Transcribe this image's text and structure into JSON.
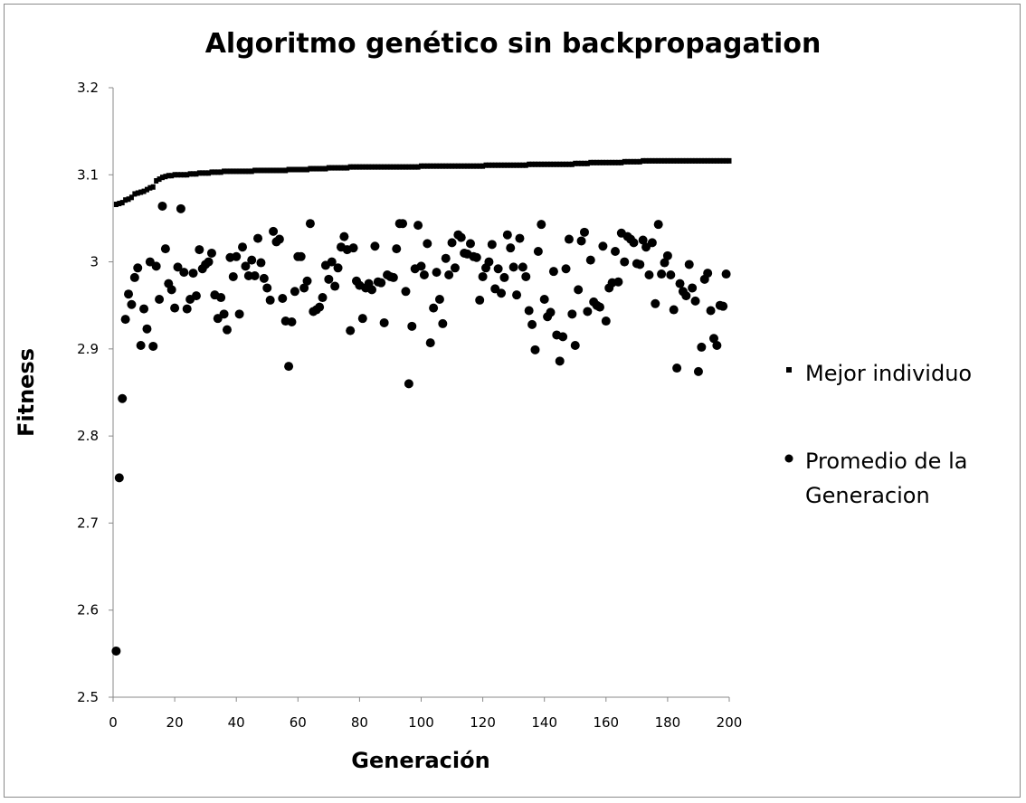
{
  "chart_data": {
    "type": "scatter",
    "title": "Algoritmo genético sin backpropagation",
    "xlabel": "Generación",
    "ylabel": "Fitness",
    "xlim": [
      0,
      200
    ],
    "ylim": [
      2.5,
      3.2
    ],
    "x_ticks": [
      "0",
      "20",
      "40",
      "60",
      "80",
      "100",
      "120",
      "140",
      "160",
      "180",
      "200"
    ],
    "y_ticks": [
      "2.5",
      "2.6",
      "2.7",
      "2.8",
      "2.9",
      "3",
      "3.1",
      "3.2"
    ],
    "grid": false,
    "legend_position": "right",
    "legend": [
      "Mejor individuo",
      "Promedio de la Generacion"
    ],
    "series": [
      {
        "name": "Mejor individuo",
        "marker": "square",
        "color": "#000000",
        "segments": [
          {
            "from": 1,
            "to": 1,
            "y": 3.066
          },
          {
            "from": 2,
            "to": 2,
            "y": 3.067
          },
          {
            "from": 3,
            "to": 3,
            "y": 3.068
          },
          {
            "from": 4,
            "to": 4,
            "y": 3.071
          },
          {
            "from": 5,
            "to": 5,
            "y": 3.072
          },
          {
            "from": 6,
            "to": 6,
            "y": 3.074
          },
          {
            "from": 7,
            "to": 7,
            "y": 3.078
          },
          {
            "from": 8,
            "to": 8,
            "y": 3.079
          },
          {
            "from": 9,
            "to": 9,
            "y": 3.08
          },
          {
            "from": 10,
            "to": 10,
            "y": 3.081
          },
          {
            "from": 11,
            "to": 11,
            "y": 3.083
          },
          {
            "from": 12,
            "to": 12,
            "y": 3.085
          },
          {
            "from": 13,
            "to": 13,
            "y": 3.086
          },
          {
            "from": 14,
            "to": 14,
            "y": 3.093
          },
          {
            "from": 15,
            "to": 15,
            "y": 3.095
          },
          {
            "from": 16,
            "to": 16,
            "y": 3.097
          },
          {
            "from": 17,
            "to": 17,
            "y": 3.098
          },
          {
            "from": 18,
            "to": 19,
            "y": 3.099
          },
          {
            "from": 20,
            "to": 24,
            "y": 3.1
          },
          {
            "from": 25,
            "to": 27,
            "y": 3.101
          },
          {
            "from": 28,
            "to": 31,
            "y": 3.102
          },
          {
            "from": 32,
            "to": 35,
            "y": 3.103
          },
          {
            "from": 36,
            "to": 45,
            "y": 3.104
          },
          {
            "from": 46,
            "to": 56,
            "y": 3.105
          },
          {
            "from": 57,
            "to": 63,
            "y": 3.106
          },
          {
            "from": 64,
            "to": 69,
            "y": 3.107
          },
          {
            "from": 70,
            "to": 76,
            "y": 3.108
          },
          {
            "from": 77,
            "to": 99,
            "y": 3.109
          },
          {
            "from": 100,
            "to": 120,
            "y": 3.11
          },
          {
            "from": 121,
            "to": 134,
            "y": 3.111
          },
          {
            "from": 135,
            "to": 149,
            "y": 3.112
          },
          {
            "from": 150,
            "to": 154,
            "y": 3.113
          },
          {
            "from": 155,
            "to": 165,
            "y": 3.114
          },
          {
            "from": 166,
            "to": 171,
            "y": 3.115
          },
          {
            "from": 172,
            "to": 200,
            "y": 3.116
          }
        ]
      },
      {
        "name": "Promedio de la Generacion",
        "marker": "circle",
        "color": "#000000",
        "points": [
          [
            1,
            2.553
          ],
          [
            2,
            2.752
          ],
          [
            3,
            2.843
          ],
          [
            4,
            2.934
          ],
          [
            5,
            2.963
          ],
          [
            6,
            2.951
          ],
          [
            7,
            2.982
          ],
          [
            8,
            2.993
          ],
          [
            9,
            2.904
          ],
          [
            10,
            2.946
          ],
          [
            11,
            2.923
          ],
          [
            12,
            3.0
          ],
          [
            13,
            2.903
          ],
          [
            14,
            2.995
          ],
          [
            15,
            2.957
          ],
          [
            16,
            3.064
          ],
          [
            17,
            3.015
          ],
          [
            18,
            2.975
          ],
          [
            19,
            2.968
          ],
          [
            20,
            2.947
          ],
          [
            21,
            2.994
          ],
          [
            22,
            3.061
          ],
          [
            23,
            2.988
          ],
          [
            24,
            2.946
          ],
          [
            25,
            2.957
          ],
          [
            26,
            2.987
          ],
          [
            27,
            2.961
          ],
          [
            28,
            3.014
          ],
          [
            29,
            2.992
          ],
          [
            30,
            2.997
          ],
          [
            31,
            3.0
          ],
          [
            32,
            3.01
          ],
          [
            33,
            2.962
          ],
          [
            34,
            2.935
          ],
          [
            35,
            2.959
          ],
          [
            36,
            2.94
          ],
          [
            37,
            2.922
          ],
          [
            38,
            3.005
          ],
          [
            39,
            2.983
          ],
          [
            40,
            3.006
          ],
          [
            41,
            2.94
          ],
          [
            42,
            3.017
          ],
          [
            43,
            2.995
          ],
          [
            44,
            2.984
          ],
          [
            45,
            3.002
          ],
          [
            46,
            2.984
          ],
          [
            47,
            3.027
          ],
          [
            48,
            2.999
          ],
          [
            49,
            2.981
          ],
          [
            50,
            2.97
          ],
          [
            51,
            2.956
          ],
          [
            52,
            3.035
          ],
          [
            53,
            3.023
          ],
          [
            54,
            3.026
          ],
          [
            55,
            2.958
          ],
          [
            56,
            2.932
          ],
          [
            57,
            2.88
          ],
          [
            58,
            2.931
          ],
          [
            59,
            2.966
          ],
          [
            60,
            3.006
          ],
          [
            61,
            3.006
          ],
          [
            62,
            2.97
          ],
          [
            63,
            2.978
          ],
          [
            64,
            3.044
          ],
          [
            65,
            2.943
          ],
          [
            66,
            2.945
          ],
          [
            67,
            2.948
          ],
          [
            68,
            2.959
          ],
          [
            69,
            2.996
          ],
          [
            70,
            2.98
          ],
          [
            71,
            3.0
          ],
          [
            72,
            2.972
          ],
          [
            73,
            2.993
          ],
          [
            74,
            3.017
          ],
          [
            75,
            3.029
          ],
          [
            76,
            3.014
          ],
          [
            77,
            2.921
          ],
          [
            78,
            3.016
          ],
          [
            79,
            2.978
          ],
          [
            80,
            2.973
          ],
          [
            81,
            2.935
          ],
          [
            82,
            2.97
          ],
          [
            83,
            2.975
          ],
          [
            84,
            2.968
          ],
          [
            85,
            3.018
          ],
          [
            86,
            2.977
          ],
          [
            87,
            2.976
          ],
          [
            88,
            2.93
          ],
          [
            89,
            2.985
          ],
          [
            90,
            2.983
          ],
          [
            91,
            2.982
          ],
          [
            92,
            3.015
          ],
          [
            93,
            3.044
          ],
          [
            94,
            3.044
          ],
          [
            95,
            2.966
          ],
          [
            96,
            2.86
          ],
          [
            97,
            2.926
          ],
          [
            98,
            2.992
          ],
          [
            99,
            3.042
          ],
          [
            100,
            2.995
          ],
          [
            101,
            2.985
          ],
          [
            102,
            3.021
          ],
          [
            103,
            2.907
          ],
          [
            104,
            2.947
          ],
          [
            105,
            2.988
          ],
          [
            106,
            2.957
          ],
          [
            107,
            2.929
          ],
          [
            108,
            3.004
          ],
          [
            109,
            2.985
          ],
          [
            110,
            3.022
          ],
          [
            111,
            2.993
          ],
          [
            112,
            3.031
          ],
          [
            113,
            3.028
          ],
          [
            114,
            3.01
          ],
          [
            115,
            3.009
          ],
          [
            116,
            3.021
          ],
          [
            117,
            3.006
          ],
          [
            118,
            3.005
          ],
          [
            119,
            2.956
          ],
          [
            120,
            2.983
          ],
          [
            121,
            2.993
          ],
          [
            122,
            3.0
          ],
          [
            123,
            3.02
          ],
          [
            124,
            2.969
          ],
          [
            125,
            2.992
          ],
          [
            126,
            2.964
          ],
          [
            127,
            2.982
          ],
          [
            128,
            3.031
          ],
          [
            129,
            3.016
          ],
          [
            130,
            2.994
          ],
          [
            131,
            2.962
          ],
          [
            132,
            3.027
          ],
          [
            133,
            2.994
          ],
          [
            134,
            2.983
          ],
          [
            135,
            2.944
          ],
          [
            136,
            2.928
          ],
          [
            137,
            2.899
          ],
          [
            138,
            3.012
          ],
          [
            139,
            3.043
          ],
          [
            140,
            2.957
          ],
          [
            141,
            2.937
          ],
          [
            142,
            2.942
          ],
          [
            143,
            2.989
          ],
          [
            144,
            2.916
          ],
          [
            145,
            2.886
          ],
          [
            146,
            2.914
          ],
          [
            147,
            2.992
          ],
          [
            148,
            3.026
          ],
          [
            149,
            2.94
          ],
          [
            150,
            2.904
          ],
          [
            151,
            2.968
          ],
          [
            152,
            3.024
          ],
          [
            153,
            3.034
          ],
          [
            154,
            2.943
          ],
          [
            155,
            3.002
          ],
          [
            156,
            2.954
          ],
          [
            157,
            2.95
          ],
          [
            158,
            2.948
          ],
          [
            159,
            3.018
          ],
          [
            160,
            2.932
          ],
          [
            161,
            2.97
          ],
          [
            162,
            2.976
          ],
          [
            163,
            3.012
          ],
          [
            164,
            2.977
          ],
          [
            165,
            3.033
          ],
          [
            166,
            3.0
          ],
          [
            167,
            3.029
          ],
          [
            168,
            3.026
          ],
          [
            169,
            3.022
          ],
          [
            170,
            2.998
          ],
          [
            171,
            2.997
          ],
          [
            172,
            3.025
          ],
          [
            173,
            3.017
          ],
          [
            174,
            2.985
          ],
          [
            175,
            3.022
          ],
          [
            176,
            2.952
          ],
          [
            177,
            3.043
          ],
          [
            178,
            2.986
          ],
          [
            179,
            2.999
          ],
          [
            180,
            3.007
          ],
          [
            181,
            2.985
          ],
          [
            182,
            2.945
          ],
          [
            183,
            2.878
          ],
          [
            184,
            2.975
          ],
          [
            185,
            2.966
          ],
          [
            186,
            2.961
          ],
          [
            187,
            2.997
          ],
          [
            188,
            2.97
          ],
          [
            189,
            2.955
          ],
          [
            190,
            2.874
          ],
          [
            191,
            2.902
          ],
          [
            192,
            2.98
          ],
          [
            193,
            2.987
          ],
          [
            194,
            2.944
          ],
          [
            195,
            2.912
          ],
          [
            196,
            2.904
          ],
          [
            197,
            2.95
          ],
          [
            198,
            2.949
          ],
          [
            199,
            2.986
          ]
        ]
      }
    ]
  }
}
